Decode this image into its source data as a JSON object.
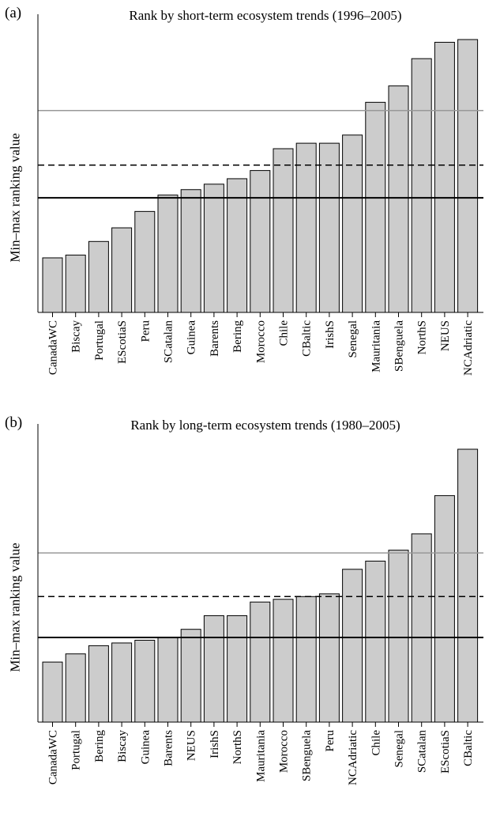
{
  "chart_data": [
    {
      "type": "bar",
      "panel_label": "(a)",
      "title": "Rank by short-term ecosystem trends  (1996–2005)",
      "ylabel": "Min–max ranking value",
      "ylim": [
        0,
        1
      ],
      "categories": [
        "CanadaWC",
        "Biscay",
        "Portugal",
        "EScotiaS",
        "Peru",
        "SCatalan",
        "Guinea",
        "Barents",
        "Bering",
        "Morocco",
        "Chile",
        "CBaltic",
        "IrishS",
        "Senegal",
        "Mauritania",
        "SBenguela",
        "NorthS",
        "NEUS",
        "NCAdriatic"
      ],
      "values": [
        0.2,
        0.21,
        0.26,
        0.31,
        0.37,
        0.43,
        0.45,
        0.47,
        0.49,
        0.52,
        0.6,
        0.62,
        0.62,
        0.65,
        0.77,
        0.83,
        0.93,
        0.99,
        1.0
      ],
      "reference_lines": [
        {
          "value": 0.42,
          "style": "solid",
          "color": "#000000"
        },
        {
          "value": 0.54,
          "style": "dashed",
          "color": "#000000"
        },
        {
          "value": 0.74,
          "style": "solid",
          "color": "#999999"
        }
      ],
      "bar_color": "#cccccc"
    },
    {
      "type": "bar",
      "panel_label": "(b)",
      "title": "Rank by long-term ecosystem trends (1980–2005)",
      "ylabel": "Min–max ranking value",
      "ylim": [
        0,
        1
      ],
      "categories": [
        "CanadaWC",
        "Portugal",
        "Bering",
        "Biscay",
        "Guinea",
        "Barents",
        "NEUS",
        "IrishS",
        "NorthS",
        "Mauritania",
        "Morocco",
        "SBenguela",
        "Peru",
        "NCAdriatic",
        "Chile",
        "Senegal",
        "SCatalan",
        "EScotiaS",
        "CBaltic"
      ],
      "values": [
        0.22,
        0.25,
        0.28,
        0.29,
        0.3,
        0.31,
        0.34,
        0.39,
        0.39,
        0.44,
        0.45,
        0.46,
        0.47,
        0.56,
        0.59,
        0.63,
        0.69,
        0.83,
        1.0
      ],
      "reference_lines": [
        {
          "value": 0.31,
          "style": "solid",
          "color": "#000000"
        },
        {
          "value": 0.46,
          "style": "dashed",
          "color": "#000000"
        },
        {
          "value": 0.62,
          "style": "solid",
          "color": "#999999"
        }
      ],
      "bar_color": "#cccccc"
    }
  ]
}
